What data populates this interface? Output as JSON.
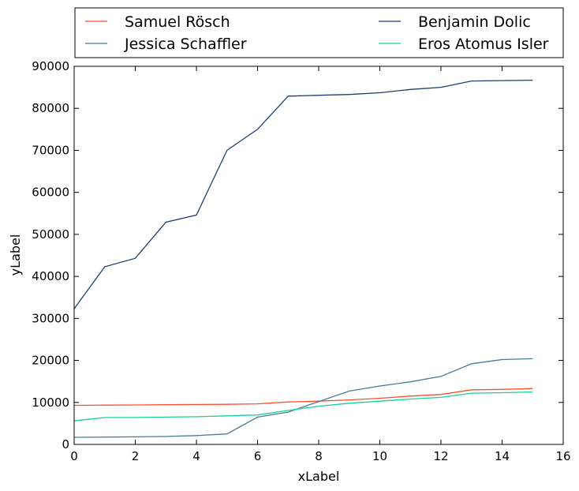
{
  "chart_data": {
    "type": "line",
    "title": "",
    "xlabel": "xLabel",
    "ylabel": "yLabel",
    "xlim": [
      0,
      16
    ],
    "ylim": [
      0,
      90000
    ],
    "xticks": [
      "0",
      "2",
      "4",
      "6",
      "8",
      "10",
      "12",
      "14",
      "16"
    ],
    "yticks": [
      "0",
      "10000",
      "20000",
      "30000",
      "40000",
      "50000",
      "60000",
      "70000",
      "80000",
      "90000"
    ],
    "grid": false,
    "legend_position": "top, above plot, two columns",
    "x": [
      0,
      1,
      2,
      3,
      4,
      5,
      6,
      7,
      8,
      9,
      10,
      11,
      12,
      13,
      14,
      15
    ],
    "series": [
      {
        "name": "Samuel Rösch",
        "color": "#fc4f30",
        "values": [
          9300,
          9350,
          9400,
          9450,
          9500,
          9550,
          9650,
          10100,
          10300,
          10600,
          11000,
          11500,
          11900,
          13000,
          13100,
          13300
        ]
      },
      {
        "name": "Benjamin Dolic",
        "color": "#1b3f6e",
        "values": [
          32300,
          42300,
          44300,
          52900,
          54600,
          70000,
          75000,
          82900,
          83100,
          83300,
          83700,
          84500,
          85000,
          86500,
          86600,
          86700
        ]
      },
      {
        "name": "Jessica Schaffler",
        "color": "#467a99",
        "values": [
          1700,
          1750,
          1800,
          1900,
          2100,
          2500,
          6500,
          7700,
          10200,
          12700,
          13900,
          14900,
          16200,
          19200,
          20200,
          20400
        ]
      },
      {
        "name": "Eros Atomus Isler",
        "color": "#18d09a",
        "values": [
          5600,
          6400,
          6400,
          6500,
          6600,
          6800,
          7000,
          8100,
          9100,
          9800,
          10300,
          10800,
          11200,
          12200,
          12300,
          12500
        ]
      }
    ]
  }
}
